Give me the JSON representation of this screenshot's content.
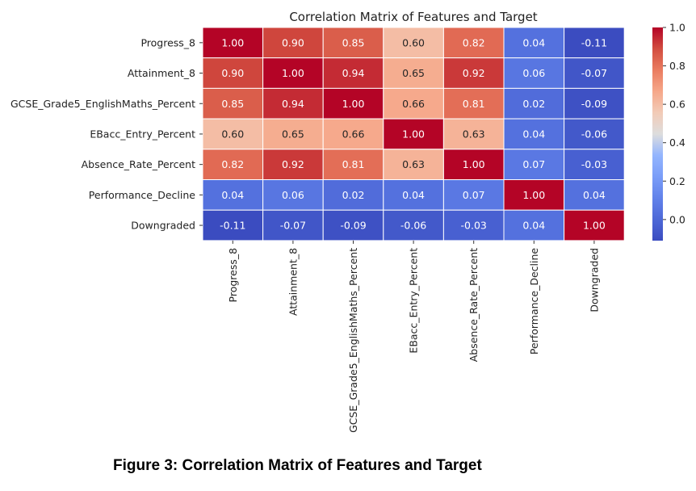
{
  "caption": "Figure 3: Correlation Matrix of Features and Target",
  "chart_data": {
    "type": "heatmap",
    "title": "Correlation Matrix of Features and Target",
    "row_labels": [
      "Progress_8",
      "Attainment_8",
      "GCSE_Grade5_EnglishMaths_Percent",
      "EBacc_Entry_Percent",
      "Absence_Rate_Percent",
      "Performance_Decline",
      "Downgraded"
    ],
    "col_labels": [
      "Progress_8",
      "Attainment_8",
      "GCSE_Grade5_EnglishMaths_Percent",
      "EBacc_Entry_Percent",
      "Absence_Rate_Percent",
      "Performance_Decline",
      "Downgraded"
    ],
    "values": [
      [
        1.0,
        0.9,
        0.85,
        0.6,
        0.82,
        0.04,
        -0.11
      ],
      [
        0.9,
        1.0,
        0.94,
        0.65,
        0.92,
        0.06,
        -0.07
      ],
      [
        0.85,
        0.94,
        1.0,
        0.66,
        0.81,
        0.02,
        -0.09
      ],
      [
        0.6,
        0.65,
        0.66,
        1.0,
        0.63,
        0.04,
        -0.06
      ],
      [
        0.82,
        0.92,
        0.81,
        0.63,
        1.0,
        0.07,
        -0.03
      ],
      [
        0.04,
        0.06,
        0.02,
        0.04,
        0.07,
        1.0,
        0.04
      ],
      [
        -0.11,
        -0.07,
        -0.09,
        -0.06,
        -0.03,
        0.04,
        1.0
      ]
    ],
    "value_format": "0.00",
    "colormap": "coolwarm",
    "vmin": -0.11,
    "vmax": 1.0,
    "colorbar_ticks": [
      0.0,
      0.2,
      0.4,
      0.6,
      0.8,
      1.0
    ],
    "colorbar_tick_labels": [
      "0.0",
      "0.2",
      "0.4",
      "0.6",
      "0.8",
      "1.0"
    ],
    "cell_border_color": "#ffffff"
  }
}
